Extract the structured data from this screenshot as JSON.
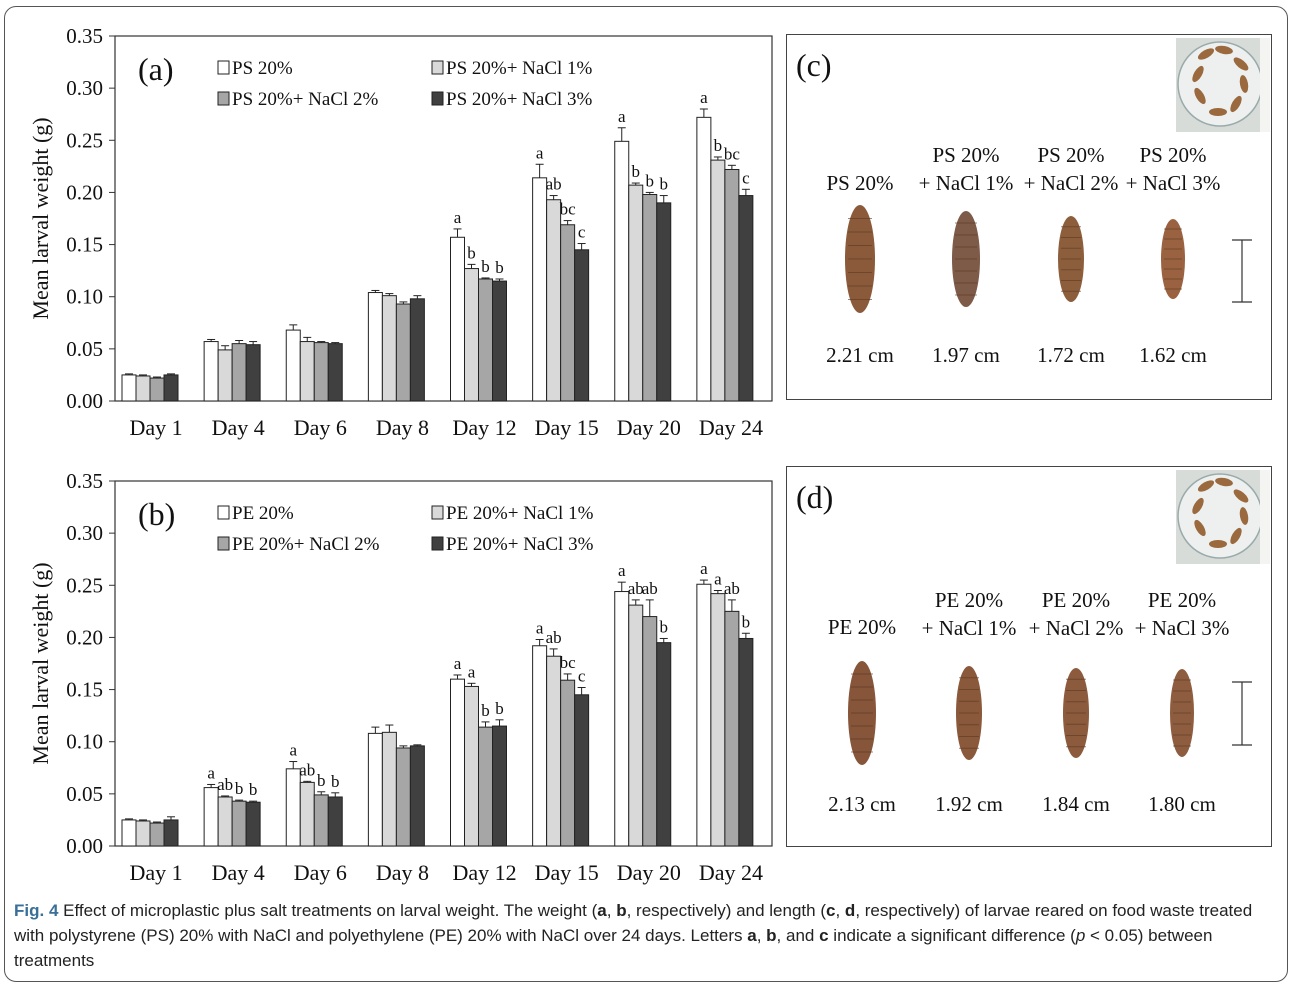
{
  "chart_data": [
    {
      "type": "bar",
      "panel_label": "(a)",
      "ylabel": "Mean larval weight (g)",
      "ylim": [
        0,
        0.35
      ],
      "yticks": [
        "0.00",
        "0.05",
        "0.10",
        "0.15",
        "0.20",
        "0.25",
        "0.30",
        "0.35"
      ],
      "categories": [
        "Day 1",
        "Day 4",
        "Day 6",
        "Day 8",
        "Day 12",
        "Day 15",
        "Day 20",
        "Day 24"
      ],
      "legend_position": "top",
      "series": [
        {
          "name": "PS 20%",
          "color": "#ffffff",
          "values": [
            0.025,
            0.057,
            0.068,
            0.104,
            0.157,
            0.214,
            0.249,
            0.272
          ],
          "errors": [
            0.001,
            0.002,
            0.005,
            0.002,
            0.008,
            0.013,
            0.013,
            0.008
          ],
          "labels": [
            "",
            "",
            "",
            "",
            "a",
            "a",
            "a",
            "a"
          ]
        },
        {
          "name": "PS 20%+ NaCl 1%",
          "color": "#d9d9d9",
          "values": [
            0.024,
            0.049,
            0.057,
            0.101,
            0.127,
            0.193,
            0.207,
            0.231
          ],
          "errors": [
            0.001,
            0.004,
            0.004,
            0.002,
            0.004,
            0.004,
            0.002,
            0.003
          ],
          "labels": [
            "",
            "",
            "",
            "",
            "b",
            "ab",
            "b",
            "b"
          ]
        },
        {
          "name": "PS 20%+ NaCl 2%",
          "color": "#a6a6a6",
          "values": [
            0.022,
            0.055,
            0.056,
            0.093,
            0.117,
            0.169,
            0.198,
            0.222
          ],
          "errors": [
            0.001,
            0.003,
            0.001,
            0.002,
            0.001,
            0.004,
            0.002,
            0.004
          ],
          "labels": [
            "",
            "",
            "",
            "",
            "b",
            "bc",
            "b",
            "bc"
          ]
        },
        {
          "name": "PS 20%+ NaCl 3%",
          "color": "#404040",
          "values": [
            0.025,
            0.054,
            0.055,
            0.098,
            0.115,
            0.145,
            0.19,
            0.197
          ],
          "errors": [
            0.001,
            0.003,
            0.001,
            0.003,
            0.002,
            0.006,
            0.007,
            0.006
          ],
          "labels": [
            "",
            "",
            "",
            "",
            "b",
            "c",
            "b",
            "c"
          ]
        }
      ]
    },
    {
      "type": "bar",
      "panel_label": "(b)",
      "ylabel": "Mean larval weight (g)",
      "ylim": [
        0,
        0.35
      ],
      "yticks": [
        "0.00",
        "0.05",
        "0.10",
        "0.15",
        "0.20",
        "0.25",
        "0.30",
        "0.35"
      ],
      "categories": [
        "Day 1",
        "Day 4",
        "Day 6",
        "Day 8",
        "Day 12",
        "Day 15",
        "Day 20",
        "Day 24"
      ],
      "legend_position": "top",
      "series": [
        {
          "name": "PE 20%",
          "color": "#ffffff",
          "values": [
            0.025,
            0.056,
            0.074,
            0.108,
            0.16,
            0.192,
            0.244,
            0.251
          ],
          "errors": [
            0.001,
            0.003,
            0.007,
            0.006,
            0.004,
            0.006,
            0.009,
            0.004
          ],
          "labels": [
            "",
            "a",
            "a",
            "",
            "a",
            "a",
            "a",
            "a"
          ]
        },
        {
          "name": "PE 20%+ NaCl 1%",
          "color": "#d9d9d9",
          "values": [
            0.024,
            0.047,
            0.061,
            0.109,
            0.153,
            0.182,
            0.231,
            0.242
          ],
          "errors": [
            0.001,
            0.001,
            0.001,
            0.007,
            0.003,
            0.007,
            0.005,
            0.003
          ],
          "labels": [
            "",
            "ab",
            "ab",
            "",
            "a",
            "ab",
            "ab",
            "a"
          ]
        },
        {
          "name": "PE 20%+ NaCl 2%",
          "color": "#a6a6a6",
          "values": [
            0.022,
            0.043,
            0.049,
            0.094,
            0.114,
            0.159,
            0.22,
            0.225
          ],
          "errors": [
            0.001,
            0.001,
            0.003,
            0.002,
            0.005,
            0.006,
            0.016,
            0.011
          ],
          "labels": [
            "",
            "b",
            "b",
            "",
            "b",
            "bc",
            "ab",
            "ab"
          ]
        },
        {
          "name": "PE 20%+ NaCl 3%",
          "color": "#404040",
          "values": [
            0.025,
            0.042,
            0.047,
            0.096,
            0.115,
            0.145,
            0.195,
            0.199
          ],
          "errors": [
            0.003,
            0.001,
            0.004,
            0.001,
            0.006,
            0.007,
            0.004,
            0.005
          ],
          "labels": [
            "",
            "b",
            "b",
            "",
            "b",
            "c",
            "b",
            "b"
          ]
        }
      ]
    }
  ],
  "photo_panels": [
    {
      "panel_label": "(c)",
      "treatments": [
        {
          "lines": [
            "PS 20%"
          ],
          "length": "2.21 cm"
        },
        {
          "lines": [
            "PS 20%",
            "+ NaCl 1%"
          ],
          "length": "1.97 cm"
        },
        {
          "lines": [
            "PS 20%",
            "+ NaCl 2%"
          ],
          "length": "1.72 cm"
        },
        {
          "lines": [
            "PS 20%",
            "+ NaCl 3%"
          ],
          "length": "1.62 cm"
        }
      ]
    },
    {
      "panel_label": "(d)",
      "treatments": [
        {
          "lines": [
            "PE 20%"
          ],
          "length": "2.13 cm"
        },
        {
          "lines": [
            "PE 20%",
            "+ NaCl 1%"
          ],
          "length": "1.92 cm"
        },
        {
          "lines": [
            "PE 20%",
            "+ NaCl 2%"
          ],
          "length": "1.84 cm"
        },
        {
          "lines": [
            "PE 20%",
            "+ NaCl 3%"
          ],
          "length": "1.80 cm"
        }
      ]
    }
  ],
  "caption": {
    "label": "Fig. 4",
    "part1": " Effect of microplastic plus salt treatments on larval weight. The weight (",
    "l_a": "a",
    "sep1": ", ",
    "l_b": "b",
    "part2": ", respectively) and length (",
    "l_c": "c",
    "sep2": ", ",
    "l_d": "d",
    "part3": ", respectively) of larvae reared on food waste treated with polystyrene (PS) 20% with NaCl and polyethylene (PE) 20% with NaCl over 24 days. Letters ",
    "l_a2": "a",
    "sep3": ", ",
    "l_b2": "b",
    "part4": ", and ",
    "l_c2": "c",
    "part5": " indicate a significant difference (",
    "p": "p",
    "part6": " < 0.05) between treatments"
  }
}
